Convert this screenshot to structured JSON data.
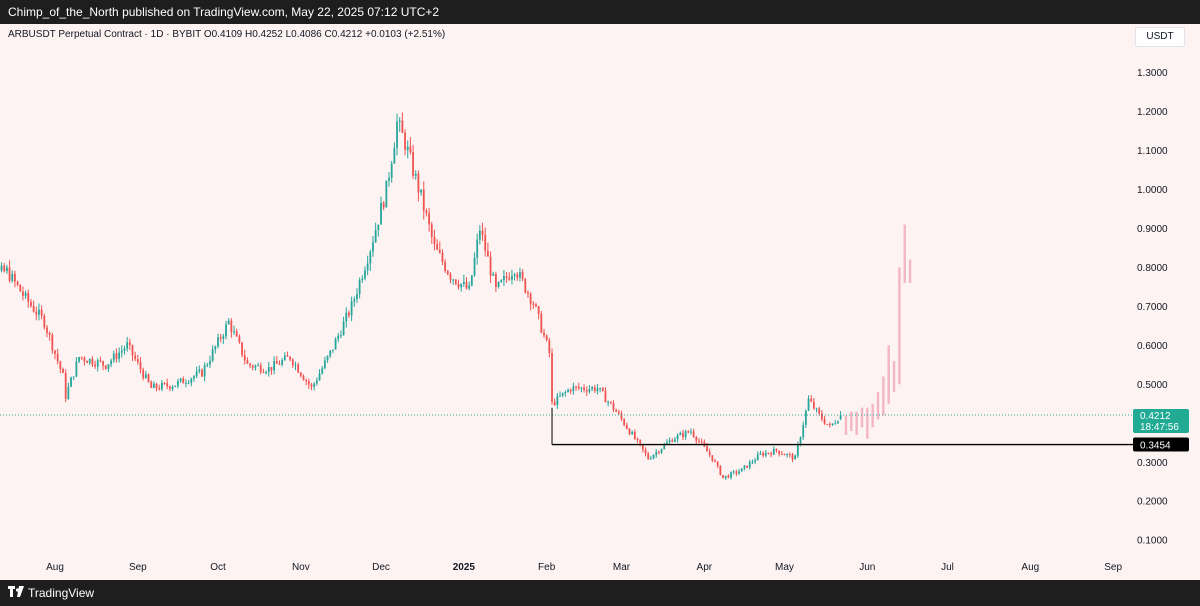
{
  "header": {
    "publisher": "Chimp_of_the_North published on TradingView.com, May 22, 2025 07:12 UTC+2"
  },
  "legend": {
    "symbol": "ARBUSDT Perpetual Contract · 1D · BYBIT",
    "open": "O0.4109",
    "high": "H0.4252",
    "low": "L0.4086",
    "close": "C0.4212",
    "change": "+0.0103 (+2.51%)"
  },
  "footer": {
    "brand": "TradingView"
  },
  "colors": {
    "up": "#26a69a",
    "down": "#ef5350",
    "projection": "#f4b6c2",
    "background": "#fdf3f3",
    "price_badge": "#22ab94",
    "support_line": "#000000"
  },
  "chart_data": {
    "type": "candlestick",
    "currency": "USDT",
    "ylim": [
      0.08,
      1.35
    ],
    "y_ticks": [
      "1.3000",
      "1.2000",
      "1.1000",
      "1.0000",
      "0.9000",
      "0.8000",
      "0.7000",
      "0.6000",
      "0.5000",
      "0.3000",
      "0.2000",
      "0.1000"
    ],
    "x_labels": [
      {
        "label": "Aug",
        "date": "2024-08-01"
      },
      {
        "label": "Sep",
        "date": "2024-09-01"
      },
      {
        "label": "Oct",
        "date": "2024-10-01"
      },
      {
        "label": "Nov",
        "date": "2024-11-01"
      },
      {
        "label": "Dec",
        "date": "2024-12-01"
      },
      {
        "label": "2025",
        "date": "2025-01-01"
      },
      {
        "label": "Feb",
        "date": "2025-02-01"
      },
      {
        "label": "Mar",
        "date": "2025-03-01"
      },
      {
        "label": "Apr",
        "date": "2025-04-01"
      },
      {
        "label": "May",
        "date": "2025-05-01"
      },
      {
        "label": "Jun",
        "date": "2025-06-01"
      },
      {
        "label": "Jul",
        "date": "2025-07-01"
      },
      {
        "label": "Aug",
        "date": "2025-08-01"
      },
      {
        "label": "Sep",
        "date": "2025-09-01"
      }
    ],
    "price_path": [
      {
        "date": "2024-07-01",
        "close": 0.75
      },
      {
        "date": "2024-07-07",
        "close": 0.78
      },
      {
        "date": "2024-07-14",
        "close": 0.79
      },
      {
        "date": "2024-07-21",
        "close": 0.72
      },
      {
        "date": "2024-07-28",
        "close": 0.66
      },
      {
        "date": "2024-08-04",
        "close": 0.52
      },
      {
        "date": "2024-08-05",
        "close": 0.47
      },
      {
        "date": "2024-08-10",
        "close": 0.57
      },
      {
        "date": "2024-08-20",
        "close": 0.55
      },
      {
        "date": "2024-08-28",
        "close": 0.6
      },
      {
        "date": "2024-09-06",
        "close": 0.49
      },
      {
        "date": "2024-09-15",
        "close": 0.5
      },
      {
        "date": "2024-09-25",
        "close": 0.53
      },
      {
        "date": "2024-10-05",
        "close": 0.66
      },
      {
        "date": "2024-10-12",
        "close": 0.55
      },
      {
        "date": "2024-10-20",
        "close": 0.54
      },
      {
        "date": "2024-10-28",
        "close": 0.57
      },
      {
        "date": "2024-11-05",
        "close": 0.49
      },
      {
        "date": "2024-11-12",
        "close": 0.58
      },
      {
        "date": "2024-11-20",
        "close": 0.7
      },
      {
        "date": "2024-11-27",
        "close": 0.85
      },
      {
        "date": "2024-12-03",
        "close": 1.0
      },
      {
        "date": "2024-12-07",
        "close": 1.17
      },
      {
        "date": "2024-12-10",
        "close": 1.12
      },
      {
        "date": "2024-12-16",
        "close": 0.98
      },
      {
        "date": "2024-12-21",
        "close": 0.85
      },
      {
        "date": "2024-12-27",
        "close": 0.78
      },
      {
        "date": "2025-01-03",
        "close": 0.74
      },
      {
        "date": "2025-01-07",
        "close": 0.9
      },
      {
        "date": "2025-01-13",
        "close": 0.74
      },
      {
        "date": "2025-01-20",
        "close": 0.8
      },
      {
        "date": "2025-01-27",
        "close": 0.71
      },
      {
        "date": "2025-02-02",
        "close": 0.58
      },
      {
        "date": "2025-02-03",
        "close": 0.45
      },
      {
        "date": "2025-02-10",
        "close": 0.49
      },
      {
        "date": "2025-02-20",
        "close": 0.49
      },
      {
        "date": "2025-02-27",
        "close": 0.43
      },
      {
        "date": "2025-03-05",
        "close": 0.37
      },
      {
        "date": "2025-03-11",
        "close": 0.31
      },
      {
        "date": "2025-03-20",
        "close": 0.36
      },
      {
        "date": "2025-03-27",
        "close": 0.38
      },
      {
        "date": "2025-04-04",
        "close": 0.31
      },
      {
        "date": "2025-04-08",
        "close": 0.26
      },
      {
        "date": "2025-04-15",
        "close": 0.28
      },
      {
        "date": "2025-04-22",
        "close": 0.32
      },
      {
        "date": "2025-04-28",
        "close": 0.33
      },
      {
        "date": "2025-05-05",
        "close": 0.31
      },
      {
        "date": "2025-05-10",
        "close": 0.46
      },
      {
        "date": "2025-05-14",
        "close": 0.42
      },
      {
        "date": "2025-05-18",
        "close": 0.39
      },
      {
        "date": "2025-05-22",
        "close": 0.4212
      }
    ],
    "projection": [
      {
        "date": "2025-05-24",
        "low": 0.37,
        "high": 0.42
      },
      {
        "date": "2025-05-26",
        "low": 0.38,
        "high": 0.43
      },
      {
        "date": "2025-05-28",
        "low": 0.37,
        "high": 0.43
      },
      {
        "date": "2025-05-30",
        "low": 0.39,
        "high": 0.44
      },
      {
        "date": "2025-06-01",
        "low": 0.36,
        "high": 0.44
      },
      {
        "date": "2025-06-03",
        "low": 0.39,
        "high": 0.45
      },
      {
        "date": "2025-06-05",
        "low": 0.41,
        "high": 0.48
      },
      {
        "date": "2025-06-07",
        "low": 0.42,
        "high": 0.52
      },
      {
        "date": "2025-06-09",
        "low": 0.45,
        "high": 0.6
      },
      {
        "date": "2025-06-11",
        "low": 0.48,
        "high": 0.56
      },
      {
        "date": "2025-06-13",
        "low": 0.5,
        "high": 0.8
      },
      {
        "date": "2025-06-15",
        "low": 0.76,
        "high": 0.91
      },
      {
        "date": "2025-06-17",
        "low": 0.76,
        "high": 0.82
      }
    ],
    "support": {
      "value": 0.3454,
      "label": "0.3454",
      "from": "2025-02-03"
    },
    "current_price": {
      "value": 0.4212,
      "label": "0.4212",
      "countdown": "18:47:56"
    }
  }
}
